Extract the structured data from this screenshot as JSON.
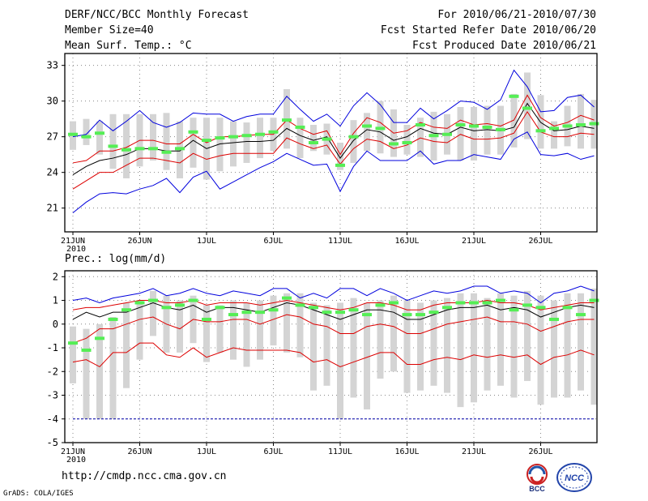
{
  "header": {
    "left": [
      "DERF/NCC/BCC Monthly Forecast",
      "Member Size=40",
      "Mean Surf. Temp.: °C"
    ],
    "right": [
      "For 2010/06/21-2010/07/30",
      "Fcst Started Refer Date 2010/06/20",
      "Fcst Produced Date 2010/06/21"
    ]
  },
  "footer": {
    "url": "http://cmdp.ncc.cma.gov.cn",
    "credit": "GrADS: COLA/IGES"
  },
  "logos": {
    "bcc": "BCC",
    "ncc": "NCC"
  },
  "colors": {
    "box": "#d4d4d4",
    "obs": "#55ee55",
    "max": "#0000dd",
    "q": "#dd0000",
    "mean": "#000000",
    "grid": "#888888"
  },
  "chart_data": [
    {
      "type": "box-plot",
      "title": "Mean Surf. Temp.: °C",
      "xlabel": "",
      "ylabel": "",
      "ylim": [
        19,
        34
      ],
      "yticks": [
        21,
        24,
        27,
        30,
        33
      ],
      "xticks": [
        {
          "day": 0,
          "label": "21JUN",
          "sub": "2010"
        },
        {
          "day": 5,
          "label": "26JUN"
        },
        {
          "day": 10,
          "label": "1JUL"
        },
        {
          "day": 15,
          "label": "6JUL"
        },
        {
          "day": 20,
          "label": "11JUL"
        },
        {
          "day": 25,
          "label": "16JUL"
        },
        {
          "day": 30,
          "label": "21JUL"
        },
        {
          "day": 35,
          "label": "26JUL"
        }
      ],
      "grid": true,
      "box_low": [
        25.9,
        26.3,
        25.5,
        24.3,
        23.5,
        24.5,
        25.0,
        24.2,
        23.5,
        24.4,
        23.4,
        24.1,
        24.5,
        24.8,
        25.2,
        25.8,
        26.0,
        25.2,
        25.8,
        25.5,
        24.2,
        24.8,
        25.8,
        25.6,
        25.3,
        25.5,
        25.3,
        25.0,
        25.5,
        25.0,
        25.0,
        25.5,
        25.5,
        26.1,
        26.8,
        26.0,
        26.0,
        26.2,
        26.0,
        26.0
      ],
      "box_high": [
        28.3,
        28.5,
        28.3,
        28.9,
        28.9,
        28.9,
        28.9,
        29.0,
        28.3,
        28.6,
        28.6,
        28.6,
        28.3,
        28.2,
        28.6,
        28.6,
        31.0,
        28.6,
        28.0,
        28.1,
        26.5,
        28.4,
        29.0,
        30.0,
        29.3,
        28.0,
        28.6,
        29.1,
        28.9,
        29.5,
        29.5,
        29.6,
        29.6,
        30.6,
        32.4,
        30.5,
        28.3,
        29.6,
        30.6,
        30.1
      ],
      "series": [
        {
          "name": "max",
          "color": "#0000dd",
          "values": [
            20.6,
            21.5,
            22.2,
            22.3,
            22.2,
            22.6,
            22.9,
            23.5,
            22.3,
            23.6,
            24.1,
            22.6,
            23.2,
            23.8,
            24.4,
            24.9,
            25.6,
            25.1,
            24.6,
            24.7,
            22.4,
            24.5,
            25.8,
            25.0,
            25.0,
            25.0,
            25.8,
            24.7,
            25.0,
            25.0,
            25.5,
            25.3,
            25.1,
            26.8,
            27.4,
            25.5,
            25.4,
            25.6,
            25.1,
            25.4
          ]
        },
        {
          "name": "q_low",
          "color": "#dd0000",
          "values": [
            22.6,
            23.3,
            24.0,
            24.0,
            24.6,
            25.2,
            25.2,
            25.0,
            24.8,
            25.6,
            25.1,
            25.4,
            25.6,
            25.6,
            25.6,
            25.6,
            26.9,
            26.4,
            26.0,
            26.3,
            24.7,
            26.0,
            26.8,
            26.6,
            26.0,
            26.3,
            26.9,
            26.6,
            26.5,
            27.2,
            26.8,
            26.8,
            26.9,
            27.3,
            29.1,
            27.4,
            27.0,
            27.0,
            27.3,
            27.2
          ]
        },
        {
          "name": "mean",
          "color": "#000000",
          "values": [
            23.8,
            24.5,
            25.0,
            25.2,
            25.5,
            26.0,
            26.0,
            25.8,
            25.8,
            26.7,
            26.0,
            26.4,
            26.5,
            26.6,
            26.6,
            26.7,
            27.7,
            27.1,
            26.7,
            27.0,
            25.2,
            26.7,
            27.6,
            27.4,
            26.7,
            27.0,
            27.7,
            27.3,
            27.2,
            27.8,
            27.5,
            27.6,
            27.5,
            27.8,
            29.8,
            28.2,
            27.5,
            27.6,
            27.9,
            27.7
          ]
        },
        {
          "name": "q_high",
          "color": "#dd0000",
          "values": [
            24.8,
            25.0,
            25.8,
            25.8,
            26.1,
            26.7,
            26.7,
            26.4,
            26.4,
            27.2,
            26.5,
            27.0,
            27.0,
            27.1,
            27.2,
            27.2,
            28.4,
            27.7,
            27.2,
            27.5,
            25.5,
            27.3,
            28.6,
            28.2,
            27.3,
            27.5,
            28.2,
            27.8,
            27.7,
            28.4,
            28.0,
            28.1,
            27.9,
            28.4,
            30.5,
            28.6,
            27.9,
            28.2,
            28.8,
            28.4
          ]
        },
        {
          "name": "upper",
          "color": "#0000dd",
          "values": [
            27.0,
            27.2,
            28.4,
            27.5,
            28.3,
            29.2,
            28.2,
            27.8,
            28.2,
            29.0,
            28.9,
            28.9,
            28.3,
            28.7,
            28.9,
            28.9,
            30.4,
            29.3,
            28.3,
            28.9,
            27.9,
            29.6,
            30.7,
            29.7,
            28.2,
            28.2,
            29.4,
            28.5,
            29.2,
            30.0,
            29.9,
            29.3,
            30.1,
            32.6,
            31.2,
            29.1,
            29.2,
            30.3,
            30.5,
            29.5
          ]
        },
        {
          "name": "obs",
          "color": "#55ee55",
          "values": [
            27.2,
            27.0,
            27.3,
            26.2,
            25.9,
            26.0,
            26.0,
            25.7,
            26.0,
            27.4,
            26.7,
            26.9,
            27.0,
            27.1,
            27.2,
            27.4,
            28.4,
            27.8,
            26.5,
            26.8,
            24.6,
            27.0,
            27.9,
            27.7,
            26.4,
            26.5,
            28.0,
            27.1,
            27.2,
            28.0,
            27.9,
            27.8,
            27.6,
            30.4,
            29.4,
            27.5,
            27.7,
            27.9,
            28.0,
            28.1
          ]
        }
      ]
    },
    {
      "type": "box-plot",
      "title": "Prec.: log(mm/d)",
      "xlabel": "",
      "ylabel": "",
      "ylim": [
        -5,
        2.25
      ],
      "yticks": [
        -5,
        -4,
        -3,
        -2,
        -1,
        0,
        1,
        2
      ],
      "xticks": [
        {
          "day": 0,
          "label": "21JUN",
          "sub": "2010"
        },
        {
          "day": 5,
          "label": "26JUN"
        },
        {
          "day": 10,
          "label": "1JUL"
        },
        {
          "day": 15,
          "label": "6JUL"
        },
        {
          "day": 20,
          "label": "11JUL"
        },
        {
          "day": 25,
          "label": "16JUL"
        },
        {
          "day": 30,
          "label": "21JUL"
        },
        {
          "day": 35,
          "label": "26JUL"
        }
      ],
      "grid": true,
      "box_low": [
        -2.5,
        -4.0,
        -4.0,
        -4.0,
        -2.7,
        -1.5,
        -0.5,
        -1.2,
        -1.2,
        -0.8,
        -1.6,
        -1.2,
        -1.5,
        -1.8,
        -1.5,
        -0.9,
        -1.2,
        -1.4,
        -2.8,
        -2.6,
        -4.0,
        -3.1,
        -3.6,
        -2.3,
        -2.0,
        -2.9,
        -2.8,
        -2.6,
        -2.9,
        -3.5,
        -3.3,
        -2.8,
        -2.6,
        -3.1,
        -2.4,
        -3.4,
        -3.1,
        -3.1,
        -2.8,
        -3.4
      ],
      "box_high": [
        -0.1,
        -0.2,
        0.0,
        0.3,
        0.9,
        1.0,
        1.4,
        1.2,
        1.0,
        1.2,
        0.8,
        0.8,
        1.0,
        0.9,
        1.0,
        1.2,
        1.3,
        1.3,
        0.9,
        0.8,
        0.9,
        1.1,
        0.9,
        1.0,
        1.2,
        1.0,
        0.9,
        1.0,
        1.1,
        1.3,
        1.3,
        1.1,
        1.3,
        1.2,
        1.4,
        1.2,
        1.0,
        1.3,
        1.3,
        1.5
      ],
      "series": [
        {
          "name": "max",
          "color": "#0000dd",
          "values": [
            1.0,
            1.1,
            0.9,
            1.1,
            1.2,
            1.3,
            1.5,
            1.2,
            1.3,
            1.5,
            1.3,
            1.2,
            1.4,
            1.3,
            1.2,
            1.5,
            1.5,
            1.1,
            1.3,
            1.1,
            1.5,
            1.5,
            1.2,
            1.5,
            1.3,
            1.0,
            1.2,
            1.4,
            1.3,
            1.4,
            1.6,
            1.6,
            1.3,
            1.4,
            1.3,
            0.9,
            1.3,
            1.4,
            1.6,
            1.4
          ]
        },
        {
          "name": "q_low",
          "color": "#dd0000",
          "values": [
            -1.6,
            -1.5,
            -1.8,
            -1.2,
            -1.2,
            -0.8,
            -0.8,
            -1.3,
            -1.4,
            -1.0,
            -1.4,
            -1.2,
            -1.0,
            -1.1,
            -1.1,
            -1.1,
            -1.1,
            -1.2,
            -1.6,
            -1.5,
            -1.8,
            -1.6,
            -1.4,
            -1.2,
            -1.2,
            -1.7,
            -1.7,
            -1.5,
            -1.4,
            -1.5,
            -1.3,
            -1.4,
            -1.3,
            -1.4,
            -1.3,
            -1.7,
            -1.4,
            -1.3,
            -1.1,
            -1.3
          ]
        },
        {
          "name": "q_mid",
          "color": "#dd0000",
          "values": [
            -0.8,
            -0.6,
            -0.2,
            -0.2,
            0.0,
            0.2,
            0.3,
            0.0,
            -0.2,
            0.2,
            0.1,
            0.1,
            0.2,
            0.2,
            0.0,
            0.2,
            0.4,
            0.3,
            0.0,
            -0.1,
            -0.4,
            -0.4,
            -0.1,
            0.0,
            -0.1,
            -0.4,
            -0.4,
            -0.2,
            0.0,
            0.1,
            0.2,
            0.3,
            0.1,
            0.1,
            0.0,
            -0.3,
            -0.1,
            0.1,
            0.2,
            0.2
          ]
        },
        {
          "name": "mean",
          "color": "#000000",
          "values": [
            0.2,
            0.5,
            0.3,
            0.5,
            0.5,
            0.7,
            0.9,
            0.7,
            0.6,
            0.8,
            0.5,
            0.7,
            0.7,
            0.6,
            0.5,
            0.7,
            0.9,
            0.8,
            0.6,
            0.4,
            0.2,
            0.4,
            0.6,
            0.6,
            0.5,
            0.2,
            0.2,
            0.4,
            0.6,
            0.7,
            0.7,
            0.8,
            0.6,
            0.7,
            0.6,
            0.3,
            0.5,
            0.7,
            0.8,
            0.7
          ]
        },
        {
          "name": "q_high",
          "color": "#dd0000",
          "values": [
            0.6,
            0.7,
            0.7,
            0.8,
            0.9,
            1.0,
            1.0,
            0.9,
            0.9,
            1.0,
            0.8,
            0.9,
            0.9,
            0.9,
            0.8,
            0.9,
            1.0,
            0.9,
            0.8,
            0.7,
            0.6,
            0.7,
            0.9,
            0.9,
            0.8,
            0.6,
            0.6,
            0.8,
            0.9,
            0.9,
            0.9,
            1.0,
            0.9,
            0.9,
            0.8,
            0.6,
            0.7,
            0.8,
            0.9,
            0.9
          ]
        },
        {
          "name": "min",
          "color": "#0000aa",
          "values": [
            -4.0,
            -4.0,
            -4.0,
            -4.0,
            -4.0,
            -4.0,
            -4.0,
            -4.0,
            -4.0,
            -4.0,
            -4.0,
            -4.0,
            -4.0,
            -4.0,
            -4.0,
            -4.0,
            -4.0,
            -4.0,
            -4.0,
            -4.0,
            -4.0,
            -4.0,
            -4.0,
            -4.0,
            -4.0,
            -4.0,
            -4.0,
            -4.0,
            -4.0,
            -4.0,
            -4.0,
            -4.0,
            -4.0,
            -4.0,
            -4.0,
            -4.0,
            -4.0,
            -4.0,
            -4.0,
            -4.0
          ]
        },
        {
          "name": "obs",
          "color": "#55ee55",
          "values": [
            -0.8,
            -1.1,
            -0.6,
            0.2,
            0.6,
            0.9,
            1.0,
            0.7,
            0.8,
            1.0,
            0.2,
            0.7,
            0.4,
            0.5,
            0.5,
            0.6,
            1.1,
            0.8,
            0.7,
            0.5,
            0.5,
            0.6,
            0.4,
            0.8,
            0.9,
            0.4,
            0.4,
            0.5,
            0.7,
            0.9,
            0.9,
            0.9,
            1.0,
            0.6,
            0.8,
            0.7,
            0.2,
            0.7,
            0.4,
            1.0
          ]
        }
      ]
    }
  ]
}
